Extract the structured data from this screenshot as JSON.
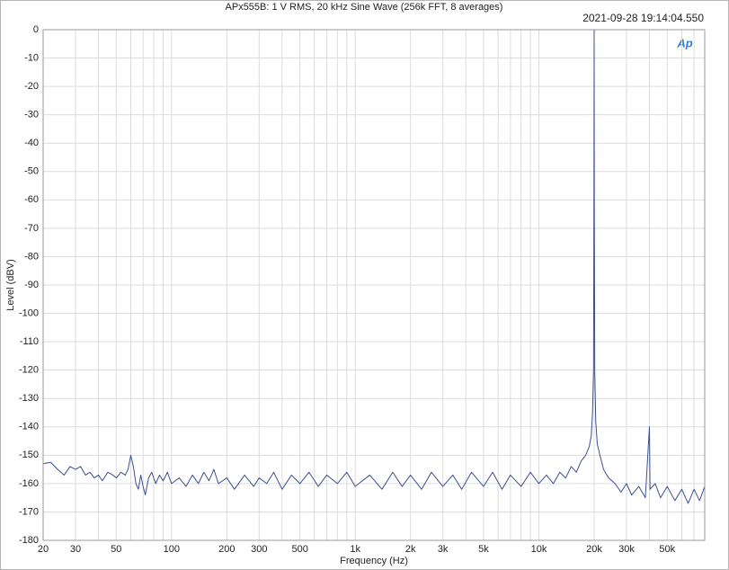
{
  "chart_data": {
    "type": "line",
    "title": "APx555B: 1 V RMS, 20 kHz Sine Wave (256k FFT, 8 averages)",
    "timestamp": "2021-09-28 19:14:04.550",
    "logo": "Ap",
    "x_label": "Frequency (Hz)",
    "y_label": "Level (dBV)",
    "x_scale": "log",
    "grid": true,
    "xlim": [
      20,
      80000
    ],
    "ylim": [
      -180,
      0
    ],
    "xticks": [
      20,
      30,
      50,
      100,
      200,
      300,
      500,
      {
        "value": 1000,
        "label": "1k"
      },
      {
        "value": 2000,
        "label": "2k"
      },
      {
        "value": 3000,
        "label": "3k"
      },
      {
        "value": 5000,
        "label": "5k"
      },
      {
        "value": 10000,
        "label": "10k"
      },
      {
        "value": 20000,
        "label": "20k"
      },
      {
        "value": 30000,
        "label": "30k"
      },
      {
        "value": 50000,
        "label": "50k"
      }
    ],
    "xminorticks": [
      40,
      60,
      70,
      80,
      90,
      400,
      600,
      700,
      800,
      900,
      4000,
      6000,
      7000,
      8000,
      9000,
      40000,
      60000,
      70000
    ],
    "yticks": [
      0,
      -10,
      -20,
      -30,
      -40,
      -50,
      -60,
      -70,
      -80,
      -90,
      -100,
      -110,
      -120,
      -130,
      -140,
      -150,
      -160,
      -170,
      -180
    ],
    "x": [
      20,
      22,
      24,
      26,
      28,
      30,
      32,
      34,
      36,
      38,
      40,
      42,
      45,
      48,
      50,
      53,
      56,
      58,
      60,
      62,
      64,
      66,
      68,
      70,
      72,
      75,
      78,
      82,
      86,
      90,
      95,
      100,
      110,
      120,
      130,
      140,
      150,
      160,
      170,
      180,
      200,
      220,
      250,
      280,
      300,
      330,
      360,
      400,
      450,
      500,
      560,
      630,
      700,
      800,
      900,
      1000,
      1200,
      1400,
      1600,
      1800,
      2000,
      2300,
      2600,
      3000,
      3400,
      3800,
      4300,
      5000,
      5600,
      6300,
      7000,
      8000,
      9000,
      10000,
      11000,
      12000,
      13000,
      14000,
      15000,
      16000,
      17000,
      18000,
      18800,
      19300,
      19600,
      19850,
      19950,
      20000,
      20050,
      20150,
      20400,
      20800,
      21500,
      22500,
      24000,
      26000,
      28000,
      30000,
      32000,
      35000,
      38000,
      40000,
      40300,
      43000,
      46000,
      50000,
      55000,
      60000,
      65000,
      70000,
      75000,
      80000
    ],
    "series": [
      {
        "name": "Level",
        "color": "#3b508f",
        "values": [
          -153,
          -152.5,
          -155,
          -157,
          -154,
          -155,
          -154,
          -157,
          -156,
          -158,
          -157,
          -159,
          -156,
          -157,
          -158,
          -156,
          -157,
          -155,
          -150,
          -154,
          -160,
          -162,
          -157,
          -161,
          -164,
          -158,
          -156,
          -160,
          -157,
          -159,
          -156,
          -160,
          -158,
          -161,
          -157,
          -160,
          -156,
          -159,
          -155,
          -160,
          -158,
          -162,
          -157,
          -161,
          -158,
          -160,
          -156,
          -162,
          -157,
          -160,
          -156,
          -161,
          -157,
          -160,
          -156,
          -161,
          -157,
          -162,
          -156,
          -161,
          -157,
          -162,
          -156,
          -161,
          -157,
          -162,
          -156,
          -161,
          -156,
          -162,
          -157,
          -161,
          -156,
          -160,
          -157,
          -160,
          -156,
          -158,
          -154,
          -156,
          -152,
          -150,
          -147,
          -143,
          -135,
          -120,
          -60,
          0,
          -60,
          -120,
          -138,
          -146,
          -150,
          -155,
          -158,
          -160,
          -163,
          -160,
          -164,
          -161,
          -165,
          -140,
          -162,
          -160,
          -165,
          -161,
          -166,
          -162,
          -167,
          -162,
          -166,
          -161
        ]
      }
    ]
  }
}
